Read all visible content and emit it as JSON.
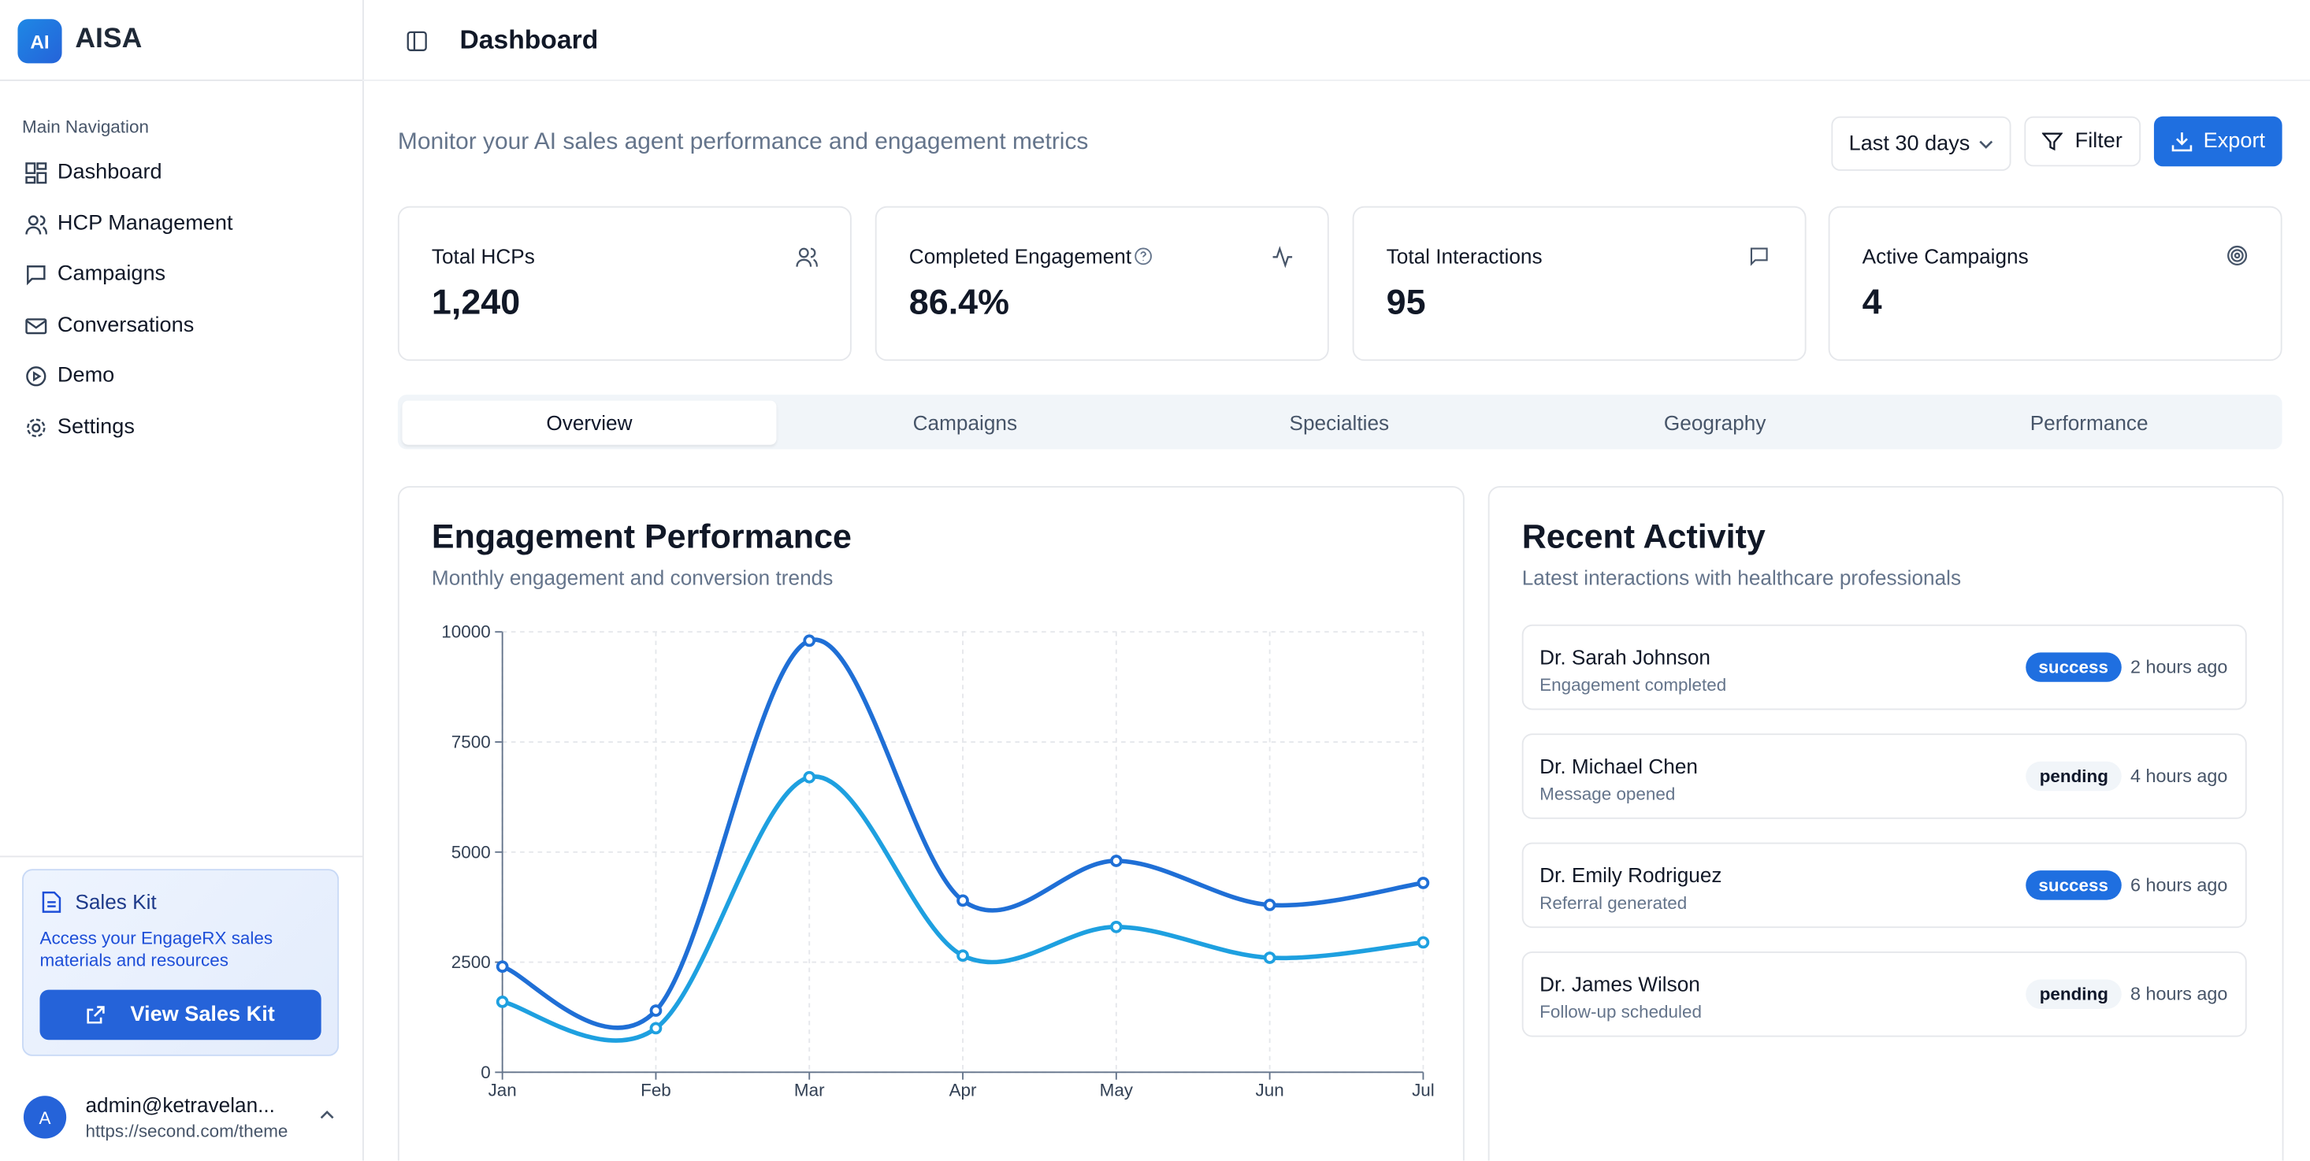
{
  "sidebar": {
    "brand_logo": "AI",
    "brand": "AISA",
    "nav_heading": "Main Navigation",
    "nav": [
      "Dashboard",
      "HCP Management",
      "Campaigns",
      "Conversations",
      "Demo",
      "Settings"
    ],
    "sales_kit": {
      "title": "Sales Kit",
      "description": "Access your EngageRX sales materials and resources",
      "button": "View Sales Kit"
    },
    "user": {
      "avatar": "A",
      "email": "admin@ketravelan...",
      "url": "https://second.com/theme"
    }
  },
  "header": {
    "title": "Dashboard"
  },
  "toolbar": {
    "subtitle": "Monitor your AI sales agent performance and engagement metrics",
    "range": "Last 30 days",
    "filter": "Filter",
    "export": "Export"
  },
  "metrics": [
    {
      "label": "Total HCPs",
      "value": "1,240"
    },
    {
      "label": "Completed Engagement",
      "value": "86.4%"
    },
    {
      "label": "Total Interactions",
      "value": "95"
    },
    {
      "label": "Active Campaigns",
      "value": "4"
    }
  ],
  "tabs": [
    "Overview",
    "Campaigns",
    "Specialties",
    "Geography",
    "Performance"
  ],
  "chart_data": {
    "type": "line",
    "title": "Engagement Performance",
    "subtitle": "Monthly engagement and conversion trends",
    "categories": [
      "Jan",
      "Feb",
      "Mar",
      "Apr",
      "May",
      "Jun",
      "Jul"
    ],
    "series": [
      {
        "color": "#1f6fd6",
        "values": [
          2400,
          1400,
          9800,
          3900,
          4800,
          3800,
          4300
        ]
      },
      {
        "color": "#1ea0e0",
        "values": [
          1600,
          1000,
          6700,
          2650,
          3300,
          2600,
          2950
        ]
      }
    ],
    "ylim": [
      0,
      10000
    ],
    "yticks": [
      0,
      2500,
      5000,
      7500,
      10000
    ],
    "grid": true
  },
  "activity": {
    "title": "Recent Activity",
    "subtitle": "Latest interactions with healthcare professionals",
    "items": [
      {
        "name": "Dr. Sarah Johnson",
        "detail": "Engagement completed",
        "status": "success",
        "time": "2 hours ago"
      },
      {
        "name": "Dr. Michael Chen",
        "detail": "Message opened",
        "status": "pending",
        "time": "4 hours ago"
      },
      {
        "name": "Dr. Emily Rodriguez",
        "detail": "Referral generated",
        "status": "success",
        "time": "6 hours ago"
      },
      {
        "name": "Dr. James Wilson",
        "detail": "Follow-up scheduled",
        "status": "pending",
        "time": "8 hours ago"
      }
    ]
  }
}
